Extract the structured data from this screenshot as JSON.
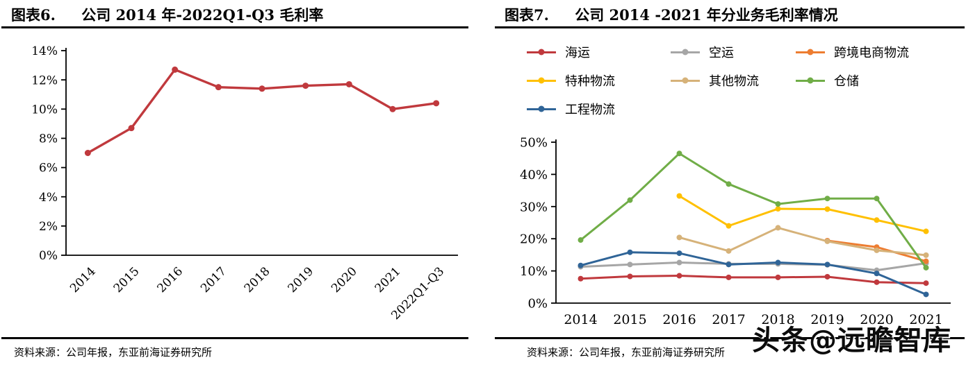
{
  "left_panel": {
    "caption_no": "图表6.",
    "caption_title": "公司 2014 年-2022Q1-Q3 毛利率",
    "source": "资料来源：公司年报，东亚前海证券研究所"
  },
  "right_panel": {
    "caption_no": "图表7.",
    "caption_title": "公司 2014 -2021 年分业务毛利率情况",
    "source": "资料来源：公司年报，东亚前海证券研究所"
  },
  "watermark": {
    "text": "头条@远瞻智库"
  },
  "chart_data": [
    {
      "id": "chart6",
      "type": "line",
      "title": "公司 2014 年-2022Q1-Q3 毛利率",
      "categories": [
        "2014",
        "2015",
        "2016",
        "2017",
        "2018",
        "2019",
        "2020",
        "2021",
        "2022Q1-Q3"
      ],
      "series": [
        {
          "name": "毛利率",
          "color": "#C0393D",
          "values": [
            7.0,
            8.7,
            12.7,
            11.5,
            11.4,
            11.6,
            11.7,
            10.0,
            10.4
          ]
        }
      ],
      "xlabel": "",
      "ylabel": "",
      "ylim": [
        0,
        14
      ],
      "ytick_step": 2,
      "ytick_suffix": "%",
      "grid": false,
      "legend_position": "none",
      "rotate_x_labels": true
    },
    {
      "id": "chart7",
      "type": "line",
      "title": "公司 2014 -2021 年分业务毛利率情况",
      "categories": [
        "2014",
        "2015",
        "2016",
        "2017",
        "2018",
        "2019",
        "2020",
        "2021"
      ],
      "series": [
        {
          "name": "海运",
          "color": "#C0393D",
          "values": [
            7.6,
            8.3,
            8.5,
            8.0,
            8.0,
            8.2,
            6.5,
            6.2
          ]
        },
        {
          "name": "空运",
          "color": "#A6A6A6",
          "values": [
            11.3,
            12.0,
            12.6,
            12.2,
            12.2,
            11.9,
            10.2,
            12.4
          ]
        },
        {
          "name": "跨境电商物流",
          "color": "#ED7D31",
          "values": [
            null,
            null,
            null,
            null,
            null,
            19.4,
            17.4,
            13.0
          ]
        },
        {
          "name": "特种物流",
          "color": "#FFC000",
          "values": [
            null,
            null,
            33.3,
            24.0,
            29.3,
            29.2,
            25.8,
            22.3
          ]
        },
        {
          "name": "其他物流",
          "color": "#D6B279",
          "values": [
            null,
            null,
            20.4,
            16.2,
            23.4,
            19.2,
            16.4,
            14.9
          ]
        },
        {
          "name": "仓储",
          "color": "#70AD47",
          "values": [
            19.6,
            32.0,
            46.5,
            37.0,
            30.8,
            32.5,
            32.5,
            11.0
          ]
        },
        {
          "name": "工程物流",
          "color": "#2F6497",
          "values": [
            11.7,
            15.8,
            15.5,
            12.0,
            12.6,
            12.0,
            9.2,
            2.7
          ]
        }
      ],
      "xlabel": "",
      "ylabel": "",
      "ylim": [
        0,
        50
      ],
      "ytick_step": 10,
      "ytick_suffix": "%",
      "grid": false,
      "legend_position": "top",
      "rotate_x_labels": false
    }
  ]
}
